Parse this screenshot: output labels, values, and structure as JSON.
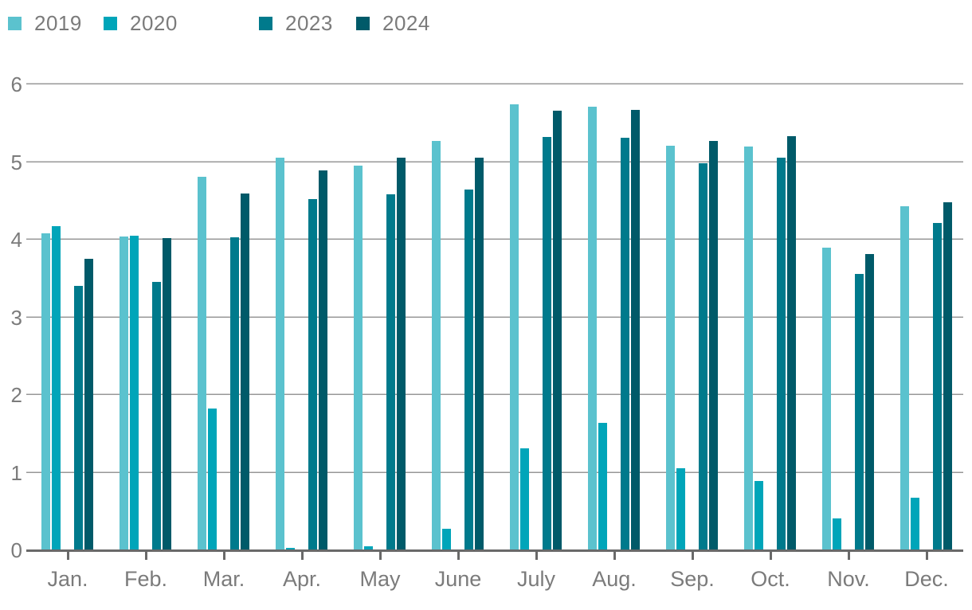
{
  "legend": {
    "items": [
      {
        "label": "2019",
        "color": "#5BC2CE"
      },
      {
        "label": "2020",
        "color": "#00A5B9"
      },
      {
        "label": "2023",
        "color": "#007A8C"
      },
      {
        "label": "2024",
        "color": "#005A69"
      }
    ]
  },
  "chart_data": {
    "type": "bar",
    "title": "",
    "xlabel": "",
    "ylabel": "",
    "categories": [
      "Jan.",
      "Feb.",
      "Mar.",
      "Apr.",
      "May",
      "June",
      "July",
      "Aug.",
      "Sep.",
      "Oct.",
      "Nov.",
      "Dec."
    ],
    "series": [
      {
        "name": "2019",
        "color": "#5BC2CE",
        "values": [
          4.08,
          4.04,
          4.81,
          5.06,
          4.95,
          5.27,
          5.74,
          5.71,
          5.21,
          5.2,
          3.9,
          4.43
        ]
      },
      {
        "name": "2020",
        "color": "#00A5B9",
        "values": [
          4.17,
          4.05,
          1.83,
          0.03,
          0.05,
          0.28,
          1.31,
          1.64,
          1.06,
          0.89,
          0.41,
          0.68
        ]
      },
      {
        "name": "2023",
        "color": "#007A8C",
        "values": [
          3.4,
          3.46,
          4.03,
          4.52,
          4.58,
          4.65,
          5.32,
          5.31,
          4.98,
          5.06,
          3.56,
          4.22
        ]
      },
      {
        "name": "2024",
        "color": "#005A69",
        "values": [
          3.75,
          4.02,
          4.6,
          4.89,
          5.06,
          5.06,
          5.66,
          5.67,
          5.27,
          5.33,
          3.82,
          4.48
        ]
      }
    ],
    "ylim": [
      0,
      6
    ],
    "yticks": [
      0,
      1,
      2,
      3,
      4,
      5,
      6
    ],
    "grid": true,
    "gridline_color": "#979797",
    "axis_color": "#696969",
    "label_color": "#7b7b7b",
    "legend_position": "top-left",
    "legend_note": "gap between 2020 and 2023 entries (years 2021/2022 not shown)"
  }
}
